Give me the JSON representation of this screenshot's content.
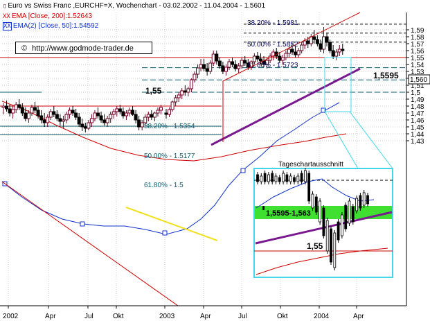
{
  "header": {
    "title": "Euro vs Swiss Franc ,EURCHF=X, Wochenchart - 03.02.2002 - 11.04.2004 - 1.5601",
    "ema200_label": "EMA [Close, 200]:1.52643",
    "ema50_label": "EMA(2) [Close, 50]:1.54592"
  },
  "watermark": "http://www.godmode-trader.de",
  "colors": {
    "candle_up": "#6b0020",
    "candle_down": "#000000",
    "ema200": "#cc0000",
    "ema50": "#1030c8",
    "trendline": "#cc0000",
    "channel_line": "#7a1890",
    "yellow_line": "#f0e020",
    "fib_line": "#0a5a6a",
    "inset_border": "#40d8e8",
    "green_zone": "#40e030"
  },
  "chart_data": {
    "type": "candlestick",
    "ylim": [
      1.43,
      1.6
    ],
    "y_ticks": [
      "1,59",
      "1,58",
      "1,57",
      "1,56",
      "1,55",
      "1,54",
      "1,53",
      "1,52",
      "1,51",
      "1,5",
      "1,49",
      "1,48",
      "1,47",
      "1,46",
      "1,45",
      "1,44",
      "1,43"
    ],
    "x_ticks": [
      "2002",
      "Apr",
      "Jul",
      "Okt",
      "2003",
      "Apr",
      "Jul",
      "Okt",
      "2004",
      "Apr"
    ],
    "last_price_label": "1,560",
    "annotations": {
      "level_155": "1,55",
      "level_15595": "1,5595",
      "fib_upper": [
        "38.20% - 1.5981",
        "50.00% - 1.5852",
        "61.80% - 1.5723"
      ],
      "fib_lower": [
        "38.20% - 1.5354",
        "50.00% - 1.5177",
        "61.80% - 1.5"
      ]
    },
    "inset": {
      "title": "Tageschartausschnitt",
      "zone_label": "1,5595-1,563",
      "level_label": "1,55"
    },
    "candles_2002": [
      [
        1.478,
        1.484,
        1.468,
        1.48
      ],
      [
        1.48,
        1.488,
        1.472,
        1.476
      ],
      [
        1.476,
        1.482,
        1.465,
        1.47
      ],
      [
        1.47,
        1.48,
        1.462,
        1.475
      ],
      [
        1.475,
        1.486,
        1.47,
        1.482
      ],
      [
        1.482,
        1.49,
        1.474,
        1.478
      ],
      [
        1.478,
        1.484,
        1.466,
        1.47
      ],
      [
        1.47,
        1.478,
        1.458,
        1.462
      ],
      [
        1.462,
        1.474,
        1.456,
        1.47
      ],
      [
        1.47,
        1.482,
        1.466,
        1.478
      ],
      [
        1.478,
        1.486,
        1.47,
        1.474
      ],
      [
        1.474,
        1.48,
        1.462,
        1.466
      ],
      [
        1.466,
        1.474,
        1.455,
        1.46
      ],
      [
        1.46,
        1.47,
        1.45,
        1.456
      ],
      [
        1.456,
        1.468,
        1.45,
        1.464
      ],
      [
        1.464,
        1.476,
        1.46,
        1.472
      ],
      [
        1.472,
        1.48,
        1.464,
        1.468
      ],
      [
        1.468,
        1.474,
        1.458,
        1.462
      ],
      [
        1.462,
        1.468,
        1.452,
        1.458
      ],
      [
        1.458,
        1.466,
        1.448,
        1.46
      ],
      [
        1.46,
        1.472,
        1.455,
        1.468
      ],
      [
        1.468,
        1.478,
        1.462,
        1.474
      ],
      [
        1.474,
        1.48,
        1.466,
        1.47
      ],
      [
        1.47,
        1.476,
        1.46,
        1.464
      ],
      [
        1.464,
        1.47,
        1.45,
        1.454
      ],
      [
        1.454,
        1.462,
        1.444,
        1.45
      ],
      [
        1.45,
        1.456,
        1.442,
        1.448
      ],
      [
        1.448,
        1.46,
        1.445,
        1.456
      ],
      [
        1.456,
        1.468,
        1.45,
        1.462
      ],
      [
        1.462,
        1.474,
        1.458,
        1.47
      ],
      [
        1.47,
        1.478,
        1.462,
        1.466
      ],
      [
        1.466,
        1.472,
        1.456,
        1.46
      ],
      [
        1.46,
        1.468,
        1.452,
        1.456
      ],
      [
        1.456,
        1.466,
        1.45,
        1.462
      ],
      [
        1.462,
        1.472,
        1.456,
        1.468
      ],
      [
        1.468,
        1.476,
        1.462,
        1.472
      ],
      [
        1.472,
        1.48,
        1.465,
        1.476
      ],
      [
        1.476,
        1.482,
        1.468,
        1.472
      ],
      [
        1.472,
        1.478,
        1.462,
        1.466
      ],
      [
        1.466,
        1.474,
        1.46,
        1.47
      ],
      [
        1.47,
        1.478,
        1.465,
        1.474
      ],
      [
        1.474,
        1.48,
        1.466,
        1.468
      ],
      [
        1.468,
        1.474,
        1.455,
        1.46
      ],
      [
        1.46,
        1.466,
        1.445,
        1.45
      ],
      [
        1.45,
        1.46,
        1.445,
        1.456
      ],
      [
        1.456,
        1.468,
        1.452,
        1.464
      ],
      [
        1.464,
        1.472,
        1.458,
        1.468
      ],
      [
        1.468,
        1.474,
        1.46,
        1.464
      ],
      [
        1.464,
        1.472,
        1.458,
        1.47
      ],
      [
        1.47,
        1.478,
        1.465,
        1.474
      ],
      [
        1.474,
        1.482,
        1.468,
        1.478
      ]
    ],
    "candles_2003": [
      [
        1.47,
        1.476,
        1.462,
        1.468
      ],
      [
        1.468,
        1.478,
        1.464,
        1.475
      ],
      [
        1.475,
        1.488,
        1.472,
        1.486
      ],
      [
        1.486,
        1.496,
        1.48,
        1.492
      ],
      [
        1.492,
        1.5,
        1.486,
        1.496
      ],
      [
        1.496,
        1.506,
        1.49,
        1.502
      ],
      [
        1.502,
        1.51,
        1.495,
        1.5
      ],
      [
        1.5,
        1.508,
        1.494,
        1.505
      ],
      [
        1.505,
        1.52,
        1.5,
        1.518
      ],
      [
        1.518,
        1.53,
        1.514,
        1.526
      ],
      [
        1.526,
        1.54,
        1.52,
        1.535
      ],
      [
        1.535,
        1.548,
        1.53,
        1.54
      ],
      [
        1.54,
        1.548,
        1.53,
        1.534
      ],
      [
        1.534,
        1.542,
        1.524,
        1.53
      ],
      [
        1.53,
        1.546,
        1.526,
        1.542
      ],
      [
        1.542,
        1.56,
        1.538,
        1.555
      ],
      [
        1.555,
        1.56,
        1.54,
        1.545
      ],
      [
        1.545,
        1.55,
        1.534,
        1.538
      ],
      [
        1.538,
        1.544,
        1.526,
        1.53
      ],
      [
        1.53,
        1.54,
        1.524,
        1.536
      ],
      [
        1.536,
        1.548,
        1.532,
        1.544
      ],
      [
        1.544,
        1.55,
        1.536,
        1.54
      ],
      [
        1.54,
        1.546,
        1.53,
        1.534
      ],
      [
        1.534,
        1.542,
        1.528,
        1.538
      ],
      [
        1.538,
        1.55,
        1.534,
        1.546
      ],
      [
        1.546,
        1.552,
        1.538,
        1.542
      ],
      [
        1.542,
        1.548,
        1.532,
        1.536
      ],
      [
        1.536,
        1.546,
        1.532,
        1.544
      ],
      [
        1.544,
        1.556,
        1.54,
        1.552
      ],
      [
        1.552,
        1.558,
        1.544,
        1.548
      ],
      [
        1.548,
        1.556,
        1.54,
        1.545
      ],
      [
        1.545,
        1.552,
        1.536,
        1.54
      ],
      [
        1.54,
        1.55,
        1.534,
        1.546
      ],
      [
        1.546,
        1.556,
        1.542,
        1.552
      ],
      [
        1.552,
        1.562,
        1.546,
        1.558
      ],
      [
        1.558,
        1.564,
        1.548,
        1.552
      ],
      [
        1.552,
        1.558,
        1.542,
        1.546
      ],
      [
        1.546,
        1.554,
        1.54,
        1.55
      ],
      [
        1.55,
        1.56,
        1.546,
        1.556
      ],
      [
        1.556,
        1.566,
        1.55,
        1.562
      ],
      [
        1.562,
        1.57,
        1.554,
        1.558
      ],
      [
        1.558,
        1.566,
        1.55,
        1.554
      ],
      [
        1.554,
        1.564,
        1.55,
        1.56
      ],
      [
        1.56,
        1.572,
        1.556,
        1.568
      ],
      [
        1.568,
        1.578,
        1.562,
        1.574
      ],
      [
        1.574,
        1.58,
        1.564,
        1.57
      ],
      [
        1.57,
        1.584,
        1.566,
        1.58
      ],
      [
        1.58,
        1.59,
        1.57,
        1.576
      ],
      [
        1.576,
        1.582,
        1.566,
        1.57
      ],
      [
        1.57,
        1.576,
        1.558,
        1.562
      ],
      [
        1.562,
        1.594,
        1.556,
        1.58
      ],
      [
        1.58,
        1.586,
        1.566,
        1.572
      ],
      [
        1.572,
        1.576,
        1.556,
        1.56
      ],
      [
        1.56,
        1.568,
        1.548,
        1.552
      ],
      [
        1.552,
        1.562,
        1.546,
        1.558
      ],
      [
        1.558,
        1.568,
        1.552,
        1.562
      ],
      [
        1.562,
        1.57,
        1.554,
        1.56
      ]
    ]
  }
}
